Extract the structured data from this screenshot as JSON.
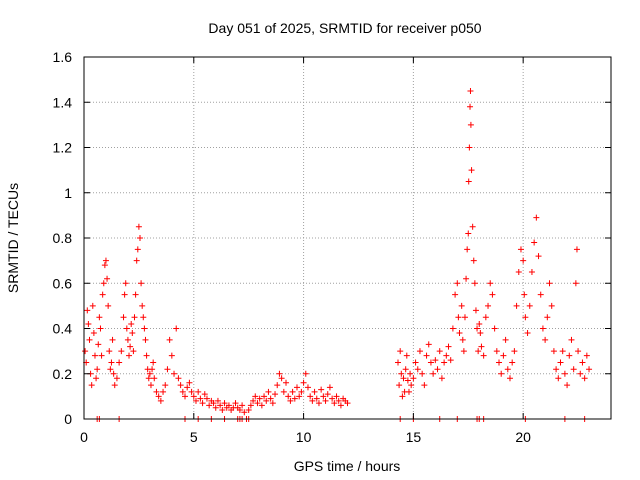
{
  "chart_data": {
    "type": "scatter",
    "title": "Day 051 of 2025, SRMTID for receiver p050",
    "xlabel": "GPS time / hours",
    "ylabel": "SRMTID / TECUs",
    "xlim": [
      0,
      24
    ],
    "ylim": [
      0,
      1.6
    ],
    "xticks": [
      0,
      5,
      10,
      15,
      20
    ],
    "yticks": [
      0,
      0.2,
      0.4,
      0.6,
      0.8,
      1,
      1.2,
      1.4,
      1.6
    ],
    "xtick_labels": [
      "0",
      "5",
      "10",
      "15",
      "20"
    ],
    "ytick_labels": [
      "0",
      "0.2",
      "0.4",
      "0.6",
      "0.8",
      "1",
      "1.2",
      "1.4",
      "1.6"
    ],
    "grid": true,
    "marker": "+",
    "color": "#ff0000",
    "series": [
      {
        "name": "SRMTID",
        "points": [
          [
            0.05,
            0.3
          ],
          [
            0.1,
            0.25
          ],
          [
            0.15,
            0.48
          ],
          [
            0.2,
            0.42
          ],
          [
            0.25,
            0.35
          ],
          [
            0.3,
            0.2
          ],
          [
            0.35,
            0.15
          ],
          [
            0.4,
            0.5
          ],
          [
            0.45,
            0.38
          ],
          [
            0.5,
            0.28
          ],
          [
            0.55,
            0.18
          ],
          [
            0.6,
            0.22
          ],
          [
            0.65,
            0.33
          ],
          [
            0.7,
            0.45
          ],
          [
            0.75,
            0.4
          ],
          [
            0.8,
            0.28
          ],
          [
            0.85,
            0.55
          ],
          [
            0.9,
            0.6
          ],
          [
            0.95,
            0.68
          ],
          [
            1.0,
            0.7
          ],
          [
            1.05,
            0.62
          ],
          [
            1.1,
            0.5
          ],
          [
            1.15,
            0.3
          ],
          [
            1.2,
            0.22
          ],
          [
            1.25,
            0.25
          ],
          [
            1.3,
            0.35
          ],
          [
            1.35,
            0.2
          ],
          [
            1.4,
            0.15
          ],
          [
            1.5,
            0.18
          ],
          [
            1.6,
            0.25
          ],
          [
            1.7,
            0.3
          ],
          [
            1.8,
            0.45
          ],
          [
            1.85,
            0.55
          ],
          [
            1.9,
            0.6
          ],
          [
            1.95,
            0.4
          ],
          [
            2.0,
            0.35
          ],
          [
            2.05,
            0.28
          ],
          [
            2.1,
            0.32
          ],
          [
            2.15,
            0.42
          ],
          [
            2.2,
            0.38
          ],
          [
            2.25,
            0.3
          ],
          [
            2.3,
            0.45
          ],
          [
            2.35,
            0.55
          ],
          [
            2.4,
            0.7
          ],
          [
            2.45,
            0.75
          ],
          [
            2.5,
            0.85
          ],
          [
            2.55,
            0.8
          ],
          [
            2.6,
            0.6
          ],
          [
            2.65,
            0.5
          ],
          [
            2.7,
            0.45
          ],
          [
            2.75,
            0.4
          ],
          [
            2.8,
            0.35
          ],
          [
            2.85,
            0.28
          ],
          [
            2.9,
            0.22
          ],
          [
            2.95,
            0.18
          ],
          [
            3.0,
            0.2
          ],
          [
            3.05,
            0.15
          ],
          [
            3.1,
            0.22
          ],
          [
            3.15,
            0.25
          ],
          [
            3.2,
            0.18
          ],
          [
            3.3,
            0.12
          ],
          [
            3.4,
            0.1
          ],
          [
            3.5,
            0.08
          ],
          [
            3.6,
            0.12
          ],
          [
            3.7,
            0.15
          ],
          [
            3.8,
            0.22
          ],
          [
            3.9,
            0.35
          ],
          [
            4.0,
            0.28
          ],
          [
            4.1,
            0.2
          ],
          [
            4.2,
            0.4
          ],
          [
            4.3,
            0.18
          ],
          [
            4.4,
            0.15
          ],
          [
            4.5,
            0.12
          ],
          [
            4.6,
            0.1
          ],
          [
            4.7,
            0.14
          ],
          [
            4.8,
            0.16
          ],
          [
            4.9,
            0.12
          ],
          [
            5.0,
            0.1
          ],
          [
            5.1,
            0.08
          ],
          [
            5.2,
            0.12
          ],
          [
            5.3,
            0.09
          ],
          [
            5.4,
            0.07
          ],
          [
            5.5,
            0.11
          ],
          [
            5.6,
            0.09
          ],
          [
            5.7,
            0.06
          ],
          [
            5.8,
            0.08
          ],
          [
            5.9,
            0.07
          ],
          [
            6.0,
            0.05
          ],
          [
            6.1,
            0.08
          ],
          [
            6.2,
            0.06
          ],
          [
            6.3,
            0.04
          ],
          [
            6.4,
            0.07
          ],
          [
            6.5,
            0.05
          ],
          [
            6.6,
            0.06
          ],
          [
            6.7,
            0.04
          ],
          [
            6.8,
            0.05
          ],
          [
            6.9,
            0.07
          ],
          [
            7.0,
            0.05
          ],
          [
            7.1,
            0.04
          ],
          [
            7.2,
            0.06
          ],
          [
            7.3,
            0.03
          ],
          [
            7.5,
            0.04
          ],
          [
            7.6,
            0.06
          ],
          [
            7.7,
            0.08
          ],
          [
            7.8,
            0.1
          ],
          [
            7.9,
            0.07
          ],
          [
            8.0,
            0.09
          ],
          [
            8.1,
            0.06
          ],
          [
            8.2,
            0.1
          ],
          [
            8.3,
            0.08
          ],
          [
            8.4,
            0.12
          ],
          [
            8.5,
            0.09
          ],
          [
            8.6,
            0.07
          ],
          [
            8.7,
            0.11
          ],
          [
            8.8,
            0.15
          ],
          [
            8.9,
            0.2
          ],
          [
            9.0,
            0.18
          ],
          [
            9.1,
            0.12
          ],
          [
            9.2,
            0.16
          ],
          [
            9.3,
            0.1
          ],
          [
            9.4,
            0.08
          ],
          [
            9.5,
            0.12
          ],
          [
            9.6,
            0.09
          ],
          [
            9.7,
            0.14
          ],
          [
            9.8,
            0.1
          ],
          [
            9.9,
            0.12
          ],
          [
            10.0,
            0.16
          ],
          [
            10.1,
            0.2
          ],
          [
            10.2,
            0.14
          ],
          [
            10.3,
            0.1
          ],
          [
            10.4,
            0.08
          ],
          [
            10.5,
            0.12
          ],
          [
            10.6,
            0.09
          ],
          [
            10.7,
            0.07
          ],
          [
            10.8,
            0.13
          ],
          [
            10.9,
            0.1
          ],
          [
            11.0,
            0.08
          ],
          [
            11.1,
            0.11
          ],
          [
            11.2,
            0.14
          ],
          [
            11.3,
            0.09
          ],
          [
            11.4,
            0.07
          ],
          [
            11.5,
            0.1
          ],
          [
            11.6,
            0.08
          ],
          [
            11.7,
            0.06
          ],
          [
            11.8,
            0.09
          ],
          [
            11.9,
            0.08
          ],
          [
            12.0,
            0.07
          ],
          [
            14.3,
            0.25
          ],
          [
            14.35,
            0.15
          ],
          [
            14.4,
            0.3
          ],
          [
            14.45,
            0.2
          ],
          [
            14.5,
            0.1
          ],
          [
            14.55,
            0.18
          ],
          [
            14.6,
            0.12
          ],
          [
            14.65,
            0.22
          ],
          [
            14.7,
            0.28
          ],
          [
            14.75,
            0.17
          ],
          [
            14.8,
            0.12
          ],
          [
            14.85,
            0.2
          ],
          [
            14.9,
            0.15
          ],
          [
            15.0,
            0.18
          ],
          [
            15.1,
            0.25
          ],
          [
            15.2,
            0.22
          ],
          [
            15.3,
            0.3
          ],
          [
            15.4,
            0.2
          ],
          [
            15.5,
            0.15
          ],
          [
            15.6,
            0.28
          ],
          [
            15.7,
            0.33
          ],
          [
            15.8,
            0.25
          ],
          [
            15.9,
            0.2
          ],
          [
            16.0,
            0.26
          ],
          [
            16.1,
            0.22
          ],
          [
            16.2,
            0.3
          ],
          [
            16.3,
            0.18
          ],
          [
            16.4,
            0.25
          ],
          [
            16.5,
            0.28
          ],
          [
            16.6,
            0.32
          ],
          [
            16.7,
            0.26
          ],
          [
            16.8,
            0.4
          ],
          [
            16.9,
            0.55
          ],
          [
            17.0,
            0.6
          ],
          [
            17.05,
            0.45
          ],
          [
            17.1,
            0.38
          ],
          [
            17.2,
            0.5
          ],
          [
            17.25,
            0.35
          ],
          [
            17.3,
            0.3
          ],
          [
            17.35,
            0.45
          ],
          [
            17.4,
            0.62
          ],
          [
            17.45,
            0.75
          ],
          [
            17.5,
            0.82
          ],
          [
            17.52,
            1.05
          ],
          [
            17.55,
            1.2
          ],
          [
            17.58,
            1.38
          ],
          [
            17.6,
            1.45
          ],
          [
            17.62,
            1.3
          ],
          [
            17.65,
            1.1
          ],
          [
            17.7,
            0.85
          ],
          [
            17.75,
            0.7
          ],
          [
            17.8,
            0.6
          ],
          [
            17.85,
            0.48
          ],
          [
            17.9,
            0.4
          ],
          [
            17.95,
            0.3
          ],
          [
            18.0,
            0.42
          ],
          [
            18.05,
            0.38
          ],
          [
            18.1,
            0.32
          ],
          [
            18.2,
            0.28
          ],
          [
            18.3,
            0.45
          ],
          [
            18.4,
            0.5
          ],
          [
            18.5,
            0.6
          ],
          [
            18.6,
            0.55
          ],
          [
            18.7,
            0.4
          ],
          [
            18.8,
            0.3
          ],
          [
            18.9,
            0.25
          ],
          [
            19.0,
            0.2
          ],
          [
            19.1,
            0.28
          ],
          [
            19.2,
            0.35
          ],
          [
            19.3,
            0.22
          ],
          [
            19.4,
            0.18
          ],
          [
            19.5,
            0.25
          ],
          [
            19.6,
            0.3
          ],
          [
            19.7,
            0.5
          ],
          [
            19.8,
            0.65
          ],
          [
            19.9,
            0.75
          ],
          [
            20.0,
            0.7
          ],
          [
            20.05,
            0.55
          ],
          [
            20.1,
            0.45
          ],
          [
            20.2,
            0.38
          ],
          [
            20.3,
            0.5
          ],
          [
            20.4,
            0.65
          ],
          [
            20.5,
            0.78
          ],
          [
            20.6,
            0.89
          ],
          [
            20.7,
            0.72
          ],
          [
            20.8,
            0.55
          ],
          [
            20.9,
            0.4
          ],
          [
            21.0,
            0.35
          ],
          [
            21.1,
            0.45
          ],
          [
            21.2,
            0.6
          ],
          [
            21.3,
            0.5
          ],
          [
            21.4,
            0.3
          ],
          [
            21.5,
            0.22
          ],
          [
            21.6,
            0.18
          ],
          [
            21.7,
            0.25
          ],
          [
            21.8,
            0.3
          ],
          [
            21.9,
            0.2
          ],
          [
            22.0,
            0.15
          ],
          [
            22.1,
            0.28
          ],
          [
            22.2,
            0.35
          ],
          [
            22.3,
            0.22
          ],
          [
            22.4,
            0.6
          ],
          [
            22.45,
            0.75
          ],
          [
            22.5,
            0.3
          ],
          [
            22.6,
            0.2
          ],
          [
            22.7,
            0.25
          ],
          [
            22.8,
            0.18
          ],
          [
            22.9,
            0.28
          ],
          [
            23.0,
            0.22
          ]
        ],
        "zeros": [
          0.6,
          0.7,
          1.6,
          4.6,
          5.2,
          5.8,
          6.4,
          7.0,
          7.1,
          7.2,
          7.4,
          7.5,
          14.4,
          15.0,
          16.2,
          17.0,
          17.9,
          18.0,
          18.2,
          20.1,
          21.9,
          22.8
        ]
      }
    ]
  }
}
